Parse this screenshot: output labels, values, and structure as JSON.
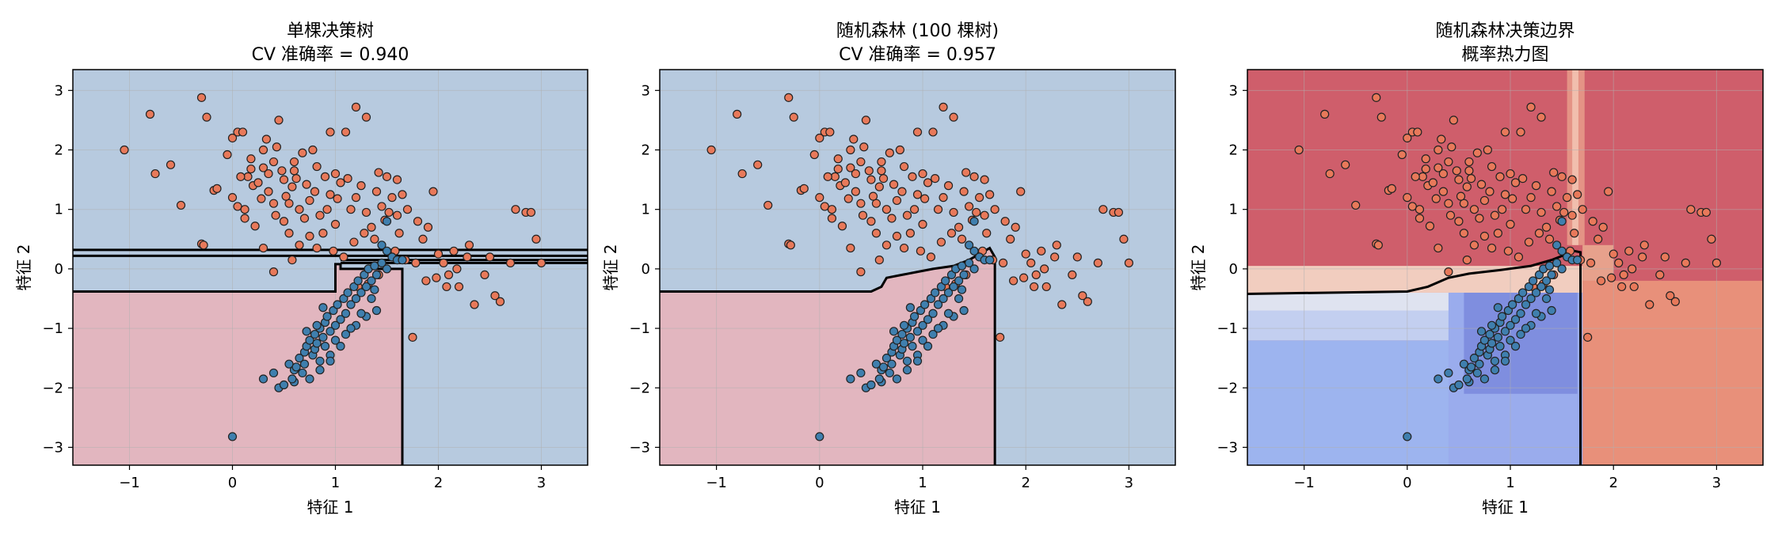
{
  "chart_data": [
    {
      "type": "scatter",
      "title_lines": [
        "单棵决策树",
        "CV 准确率 = 0.940"
      ],
      "xlabel": "特征 1",
      "ylabel": "特征 2",
      "xlim": [
        -1.55,
        3.45
      ],
      "ylim": [
        -3.3,
        3.35
      ],
      "xticks": [
        -1,
        0,
        1,
        2,
        3
      ],
      "yticks": [
        -3,
        -2,
        -1,
        0,
        1,
        2,
        3
      ],
      "grid": true,
      "background": "decision regions (class 0 blue, class 1 pink)"
    },
    {
      "type": "scatter",
      "title_lines": [
        "随机森林 (100 棵树)",
        "CV 准确率 = 0.957"
      ],
      "xlabel": "特征 1",
      "ylabel": "特征 2",
      "xlim": [
        -1.55,
        3.45
      ],
      "ylim": [
        -3.3,
        3.35
      ],
      "xticks": [
        -1,
        0,
        1,
        2,
        3
      ],
      "yticks": [
        -3,
        -2,
        -1,
        0,
        1,
        2,
        3
      ],
      "grid": true,
      "background": "decision regions (class 0 blue, class 1 pink)"
    },
    {
      "type": "heatmap",
      "title_lines": [
        "随机森林决策边界",
        "概率热力图"
      ],
      "xlabel": "特征 1",
      "ylabel": "特征 2",
      "xlim": [
        -1.55,
        3.45
      ],
      "ylim": [
        -3.3,
        3.35
      ],
      "xticks": [
        -1,
        0,
        1,
        2,
        3
      ],
      "yticks": [
        -3,
        -2,
        -1,
        0,
        1,
        2,
        3
      ],
      "grid": true,
      "colormap": "coolwarm"
    }
  ],
  "colors": {
    "class0_point": "#3f7fae",
    "class1_point": "#e8795a",
    "region_blue": "#b7cadf",
    "region_pink": "#e2b6bf",
    "heat_red": "#cf5e6b",
    "heat_deep_blue": "#7f8edf",
    "heat_light_blue": "#9db4ef",
    "heat_orange": "#e8907a"
  },
  "points": {
    "class1": [
      [
        -1.05,
        2.0
      ],
      [
        -0.8,
        2.6
      ],
      [
        -0.75,
        1.6
      ],
      [
        -0.6,
        1.75
      ],
      [
        -0.5,
        1.07
      ],
      [
        -0.3,
        2.88
      ],
      [
        -0.25,
        2.55
      ],
      [
        -0.3,
        0.42
      ],
      [
        -0.28,
        0.4
      ],
      [
        -0.18,
        1.32
      ],
      [
        -0.15,
        1.35
      ],
      [
        -0.05,
        1.92
      ],
      [
        0.0,
        2.2
      ],
      [
        0.05,
        2.3
      ],
      [
        0.1,
        2.3
      ],
      [
        0.0,
        1.2
      ],
      [
        0.05,
        1.05
      ],
      [
        0.12,
        1.0
      ],
      [
        0.15,
        1.55
      ],
      [
        0.18,
        1.68
      ],
      [
        0.2,
        1.4
      ],
      [
        0.25,
        1.45
      ],
      [
        0.3,
        2.0
      ],
      [
        0.3,
        1.7
      ],
      [
        0.35,
        1.6
      ],
      [
        0.35,
        1.3
      ],
      [
        0.4,
        1.8
      ],
      [
        0.4,
        1.1
      ],
      [
        0.42,
        0.9
      ],
      [
        0.45,
        2.5
      ],
      [
        0.5,
        1.5
      ],
      [
        0.5,
        0.8
      ],
      [
        0.55,
        1.1
      ],
      [
        0.6,
        1.8
      ],
      [
        0.6,
        1.65
      ],
      [
        0.65,
        1.0
      ],
      [
        0.7,
        0.85
      ],
      [
        0.75,
        1.15
      ],
      [
        0.8,
        1.3
      ],
      [
        0.85,
        0.9
      ],
      [
        0.9,
        1.55
      ],
      [
        0.95,
        1.25
      ],
      [
        1.0,
        1.6
      ],
      [
        1.05,
        1.45
      ],
      [
        1.0,
        0.75
      ],
      [
        1.1,
        2.3
      ],
      [
        1.15,
        1.0
      ],
      [
        1.2,
        1.2
      ],
      [
        1.25,
        1.4
      ],
      [
        1.3,
        0.95
      ],
      [
        1.35,
        0.7
      ],
      [
        1.4,
        1.3
      ],
      [
        1.45,
        1.05
      ],
      [
        1.5,
        1.55
      ],
      [
        1.55,
        1.2
      ],
      [
        1.6,
        0.9
      ],
      [
        1.62,
        0.6
      ],
      [
        1.7,
        1.0
      ],
      [
        1.8,
        0.8
      ],
      [
        1.85,
        0.5
      ],
      [
        1.9,
        0.7
      ],
      [
        1.95,
        1.3
      ],
      [
        2.0,
        0.25
      ],
      [
        2.05,
        0.1
      ],
      [
        2.1,
        -0.1
      ],
      [
        2.15,
        0.3
      ],
      [
        2.2,
        -0.3
      ],
      [
        2.3,
        0.4
      ],
      [
        2.35,
        -0.6
      ],
      [
        2.45,
        -0.1
      ],
      [
        2.5,
        0.2
      ],
      [
        2.55,
        -0.45
      ],
      [
        2.6,
        -0.55
      ],
      [
        2.7,
        0.1
      ],
      [
        2.75,
        1.0
      ],
      [
        2.85,
        0.95
      ],
      [
        2.9,
        0.95
      ],
      [
        2.95,
        0.5
      ],
      [
        3.0,
        0.1
      ],
      [
        1.75,
        -1.15
      ],
      [
        1.6,
        1.5
      ],
      [
        1.3,
        2.55
      ],
      [
        1.2,
        2.72
      ],
      [
        0.95,
        2.3
      ],
      [
        0.3,
        0.35
      ],
      [
        0.4,
        -0.05
      ],
      [
        0.55,
        0.6
      ],
      [
        0.68,
        1.95
      ],
      [
        0.78,
        2.0
      ],
      [
        0.88,
        0.6
      ],
      [
        0.58,
        0.15
      ],
      [
        0.65,
        0.4
      ],
      [
        0.75,
        0.55
      ],
      [
        0.82,
        0.35
      ],
      [
        0.98,
        0.3
      ],
      [
        1.08,
        0.2
      ],
      [
        1.18,
        0.45
      ],
      [
        1.28,
        0.6
      ],
      [
        1.38,
        0.5
      ],
      [
        1.48,
        0.82
      ],
      [
        1.58,
        0.3
      ],
      [
        1.68,
        0.15
      ],
      [
        1.78,
        0.1
      ],
      [
        1.88,
        -0.2
      ],
      [
        1.98,
        -0.15
      ],
      [
        2.08,
        -0.3
      ],
      [
        2.18,
        0.0
      ],
      [
        2.28,
        0.2
      ],
      [
        1.22,
        -0.3
      ],
      [
        1.32,
        -0.25
      ],
      [
        1.42,
        -0.1
      ],
      [
        0.92,
        1.0
      ],
      [
        0.48,
        1.65
      ],
      [
        0.58,
        1.38
      ],
      [
        0.28,
        1.18
      ],
      [
        0.22,
        0.72
      ],
      [
        0.12,
        0.85
      ],
      [
        0.08,
        1.55
      ],
      [
        0.18,
        1.85
      ],
      [
        0.33,
        2.18
      ],
      [
        0.43,
        2.05
      ],
      [
        0.52,
        1.22
      ],
      [
        0.62,
        1.52
      ],
      [
        0.72,
        1.42
      ],
      [
        0.82,
        1.72
      ],
      [
        1.02,
        1.18
      ],
      [
        1.12,
        1.52
      ],
      [
        1.42,
        1.62
      ],
      [
        1.52,
        0.95
      ],
      [
        1.65,
        1.25
      ]
    ],
    "class0": [
      [
        0.0,
        -2.82
      ],
      [
        0.3,
        -1.85
      ],
      [
        0.4,
        -1.75
      ],
      [
        0.45,
        -2.0
      ],
      [
        0.5,
        -1.95
      ],
      [
        0.55,
        -1.6
      ],
      [
        0.6,
        -1.7
      ],
      [
        0.6,
        -1.9
      ],
      [
        0.65,
        -1.5
      ],
      [
        0.7,
        -1.4
      ],
      [
        0.7,
        -1.6
      ],
      [
        0.72,
        -1.3
      ],
      [
        0.75,
        -1.2
      ],
      [
        0.78,
        -1.45
      ],
      [
        0.8,
        -1.1
      ],
      [
        0.8,
        -1.35
      ],
      [
        0.82,
        -1.25
      ],
      [
        0.85,
        -1.0
      ],
      [
        0.85,
        -1.55
      ],
      [
        0.88,
        -1.15
      ],
      [
        0.9,
        -0.9
      ],
      [
        0.9,
        -1.3
      ],
      [
        0.92,
        -0.8
      ],
      [
        0.95,
        -1.05
      ],
      [
        0.95,
        -1.45
      ],
      [
        0.98,
        -0.7
      ],
      [
        1.0,
        -0.95
      ],
      [
        1.0,
        -1.2
      ],
      [
        1.02,
        -0.6
      ],
      [
        1.05,
        -0.85
      ],
      [
        1.08,
        -0.5
      ],
      [
        1.1,
        -0.75
      ],
      [
        1.12,
        -0.4
      ],
      [
        1.15,
        -0.6
      ],
      [
        1.18,
        -0.3
      ],
      [
        1.2,
        -0.5
      ],
      [
        1.22,
        -0.2
      ],
      [
        1.25,
        -0.4
      ],
      [
        1.28,
        -0.1
      ],
      [
        1.3,
        -0.3
      ],
      [
        1.32,
        0.0
      ],
      [
        1.35,
        -0.2
      ],
      [
        1.38,
        0.05
      ],
      [
        1.4,
        -0.1
      ],
      [
        1.45,
        0.1
      ],
      [
        1.5,
        0.0
      ],
      [
        1.55,
        0.2
      ],
      [
        1.6,
        0.15
      ],
      [
        1.65,
        0.15
      ],
      [
        1.45,
        0.4
      ],
      [
        1.5,
        0.3
      ],
      [
        1.4,
        -0.7
      ],
      [
        1.3,
        -0.8
      ],
      [
        1.2,
        -0.95
      ],
      [
        1.1,
        -1.1
      ],
      [
        0.68,
        -1.75
      ],
      [
        0.62,
        -1.65
      ],
      [
        0.58,
        -1.85
      ],
      [
        0.75,
        -1.85
      ],
      [
        0.85,
        -1.7
      ],
      [
        0.95,
        -1.55
      ],
      [
        1.05,
        -1.3
      ],
      [
        1.15,
        -1.0
      ],
      [
        1.25,
        -0.75
      ],
      [
        1.35,
        -0.5
      ],
      [
        1.5,
        0.8
      ],
      [
        0.72,
        -1.05
      ],
      [
        0.82,
        -0.95
      ],
      [
        0.88,
        -0.65
      ],
      [
        1.38,
        -0.35
      ]
    ]
  },
  "boundaries": {
    "dt": [
      [
        -1.55,
        -0.38
      ],
      [
        1.0,
        -0.38
      ],
      [
        1.0,
        0.08
      ],
      [
        1.0,
        0.15
      ],
      [
        3.45,
        0.15
      ]
    ],
    "rf": [
      [
        -1.55,
        -0.38
      ],
      [
        0.5,
        -0.38
      ],
      [
        0.6,
        -0.3
      ],
      [
        0.65,
        -0.15
      ],
      [
        0.8,
        -0.1
      ],
      [
        0.95,
        -0.05
      ],
      [
        1.1,
        0.0
      ],
      [
        1.3,
        0.05
      ],
      [
        1.45,
        0.15
      ],
      [
        1.58,
        0.28
      ],
      [
        1.65,
        0.35
      ],
      [
        1.7,
        0.2
      ],
      [
        1.7,
        -3.3
      ]
    ],
    "heat": [
      [
        -1.55,
        -0.42
      ],
      [
        0.0,
        -0.38
      ],
      [
        0.2,
        -0.3
      ],
      [
        0.4,
        -0.15
      ],
      [
        0.6,
        -0.08
      ],
      [
        0.9,
        -0.02
      ],
      [
        1.2,
        0.05
      ],
      [
        1.4,
        0.15
      ],
      [
        1.55,
        0.25
      ],
      [
        1.62,
        0.3
      ],
      [
        1.68,
        0.28
      ],
      [
        1.68,
        -3.3
      ]
    ]
  }
}
